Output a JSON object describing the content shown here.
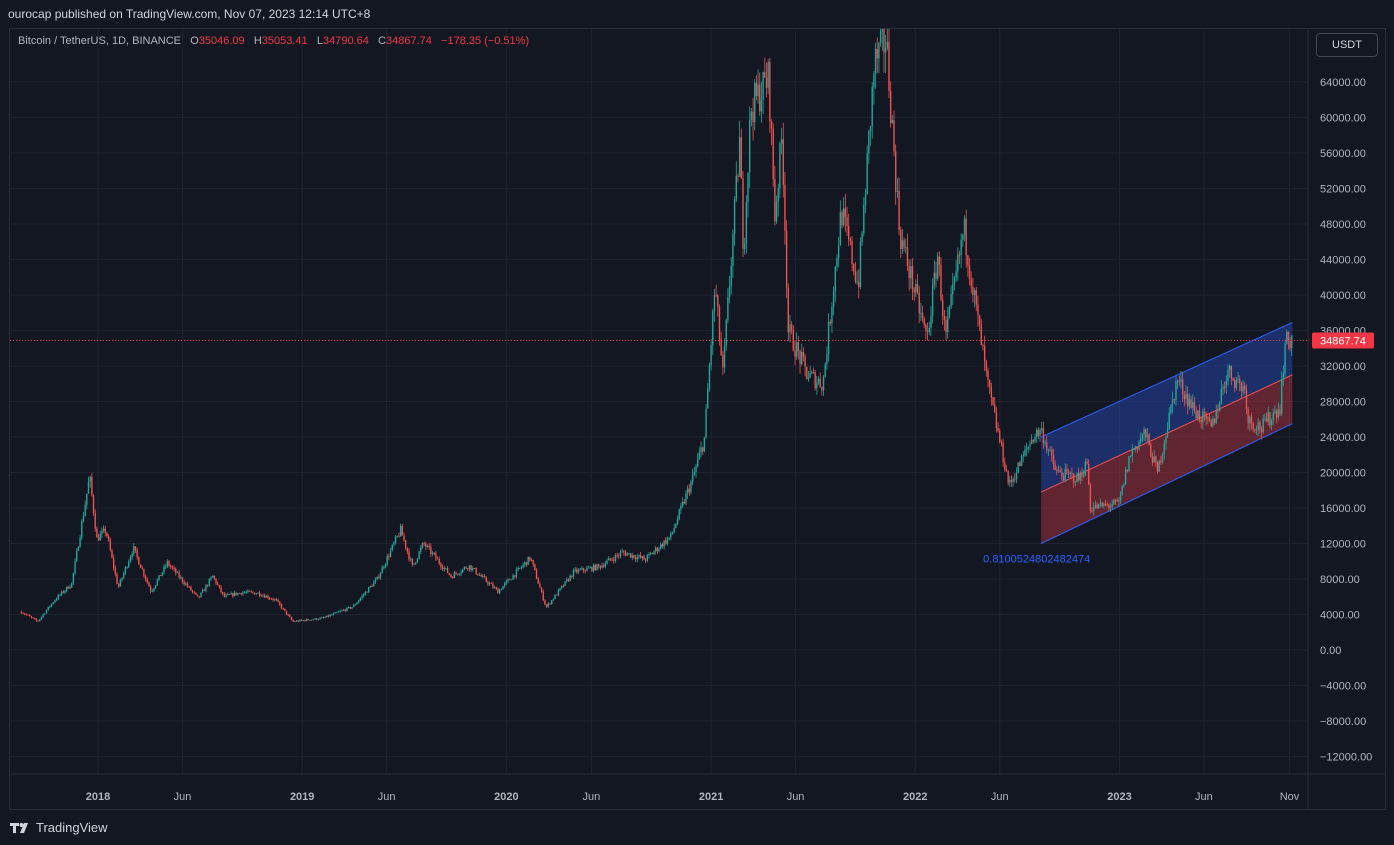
{
  "header": {
    "published": "ourocap published on TradingView.com, Nov 07, 2023 12:14 UTC+8"
  },
  "legend": {
    "symbol": "Bitcoin / TetherUS, 1D, BINANCE",
    "o_label": "O",
    "o_value": "35046.09",
    "h_label": "H",
    "h_value": "35053.41",
    "l_label": "L",
    "l_value": "34790.64",
    "c_label": "C",
    "c_value": "34867.74",
    "change": "−178.35 (−0.51%)"
  },
  "currency_button": "USDT",
  "footer": {
    "brand": "TradingView",
    "logo_icon": "tradingview-logo-icon"
  },
  "colors": {
    "background": "#131722",
    "grid": "#1f2331",
    "up": "#26a69a",
    "down": "#ef5350",
    "price_label_bg": "#f23645",
    "channel_upper_fill": "#2743a3",
    "channel_lower_fill": "#a3323f",
    "channel_line": "#2962ff",
    "fib_text": "#2962ff"
  },
  "chart_data": {
    "type": "candlestick",
    "symbol": "BTCUSDT",
    "interval": "1D",
    "ylim": [
      -14000,
      70000
    ],
    "y_ticks": [
      64000,
      60000,
      56000,
      52000,
      48000,
      44000,
      40000,
      36000,
      32000,
      28000,
      24000,
      20000,
      16000,
      12000,
      8000,
      4000,
      0,
      -4000,
      -8000,
      -12000
    ],
    "y_tick_labels": [
      "64000.00",
      "60000.00",
      "56000.00",
      "52000.00",
      "48000.00",
      "44000.00",
      "40000.00",
      "36000.00",
      "32000.00",
      "28000.00",
      "24000.00",
      "20000.00",
      "16000.00",
      "12000.00",
      "8000.00",
      "4000.00",
      "0.00",
      "−4000.00",
      "−8000.00",
      "−12000.00"
    ],
    "x_ticks": [
      {
        "date": "2018-01-01",
        "label": "2018"
      },
      {
        "date": "2018-06-01",
        "label": "Jun"
      },
      {
        "date": "2019-01-01",
        "label": "2019"
      },
      {
        "date": "2019-06-01",
        "label": "Jun"
      },
      {
        "date": "2020-01-01",
        "label": "2020"
      },
      {
        "date": "2020-06-01",
        "label": "Jun"
      },
      {
        "date": "2021-01-01",
        "label": "2021"
      },
      {
        "date": "2021-06-01",
        "label": "Jun"
      },
      {
        "date": "2022-01-01",
        "label": "2022"
      },
      {
        "date": "2022-06-01",
        "label": "Jun"
      },
      {
        "date": "2023-01-01",
        "label": "2023"
      },
      {
        "date": "2023-06-01",
        "label": "Jun"
      },
      {
        "date": "2023-11-01",
        "label": "Nov"
      }
    ],
    "x_range": [
      "2017-08-17",
      "2024-01-07"
    ],
    "price_path": [
      {
        "date": "2017-08-17",
        "close": 4300
      },
      {
        "date": "2017-09-15",
        "close": 3200
      },
      {
        "date": "2017-10-15",
        "close": 5600
      },
      {
        "date": "2017-11-15",
        "close": 7500
      },
      {
        "date": "2017-12-17",
        "close": 19500
      },
      {
        "date": "2017-12-30",
        "close": 12500
      },
      {
        "date": "2018-01-15",
        "close": 13500
      },
      {
        "date": "2018-02-06",
        "close": 7000
      },
      {
        "date": "2018-03-05",
        "close": 11500
      },
      {
        "date": "2018-04-06",
        "close": 6600
      },
      {
        "date": "2018-05-05",
        "close": 9800
      },
      {
        "date": "2018-06-29",
        "close": 5800
      },
      {
        "date": "2018-07-25",
        "close": 8300
      },
      {
        "date": "2018-08-14",
        "close": 6000
      },
      {
        "date": "2018-09-15",
        "close": 6500
      },
      {
        "date": "2018-10-15",
        "close": 6400
      },
      {
        "date": "2018-11-15",
        "close": 5600
      },
      {
        "date": "2018-12-15",
        "close": 3200
      },
      {
        "date": "2019-02-08",
        "close": 3600
      },
      {
        "date": "2019-04-02",
        "close": 4900
      },
      {
        "date": "2019-05-15",
        "close": 8000
      },
      {
        "date": "2019-06-26",
        "close": 13500
      },
      {
        "date": "2019-07-17",
        "close": 9400
      },
      {
        "date": "2019-08-06",
        "close": 12000
      },
      {
        "date": "2019-09-24",
        "close": 8300
      },
      {
        "date": "2019-10-26",
        "close": 9500
      },
      {
        "date": "2019-12-17",
        "close": 6600
      },
      {
        "date": "2020-02-13",
        "close": 10400
      },
      {
        "date": "2020-03-12",
        "close": 4800
      },
      {
        "date": "2020-05-01",
        "close": 8800
      },
      {
        "date": "2020-06-15",
        "close": 9400
      },
      {
        "date": "2020-07-27",
        "close": 11000
      },
      {
        "date": "2020-09-05",
        "close": 10200
      },
      {
        "date": "2020-10-21",
        "close": 12800
      },
      {
        "date": "2020-11-30",
        "close": 19500
      },
      {
        "date": "2020-12-20",
        "close": 23800
      },
      {
        "date": "2021-01-08",
        "close": 41000
      },
      {
        "date": "2021-01-22",
        "close": 31000
      },
      {
        "date": "2021-02-21",
        "close": 57000
      },
      {
        "date": "2021-02-28",
        "close": 45000
      },
      {
        "date": "2021-03-13",
        "close": 61000
      },
      {
        "date": "2021-04-14",
        "close": 64500
      },
      {
        "date": "2021-04-25",
        "close": 49000
      },
      {
        "date": "2021-05-08",
        "close": 58000
      },
      {
        "date": "2021-05-19",
        "close": 36000
      },
      {
        "date": "2021-06-22",
        "close": 31000
      },
      {
        "date": "2021-07-20",
        "close": 30000
      },
      {
        "date": "2021-08-22",
        "close": 49500
      },
      {
        "date": "2021-09-21",
        "close": 41000
      },
      {
        "date": "2021-10-20",
        "close": 66000
      },
      {
        "date": "2021-11-10",
        "close": 68800
      },
      {
        "date": "2021-12-04",
        "close": 47000
      },
      {
        "date": "2022-01-22",
        "close": 35000
      },
      {
        "date": "2022-02-10",
        "close": 44500
      },
      {
        "date": "2022-02-24",
        "close": 35000
      },
      {
        "date": "2022-03-29",
        "close": 47500
      },
      {
        "date": "2022-05-10",
        "close": 30000
      },
      {
        "date": "2022-06-18",
        "close": 18500
      },
      {
        "date": "2022-07-30",
        "close": 24000
      },
      {
        "date": "2022-08-14",
        "close": 24800
      },
      {
        "date": "2022-09-10",
        "close": 20000
      },
      {
        "date": "2022-10-20",
        "close": 19300
      },
      {
        "date": "2022-11-05",
        "close": 21200
      },
      {
        "date": "2022-11-09",
        "close": 16000
      },
      {
        "date": "2022-12-31",
        "close": 16500
      },
      {
        "date": "2023-01-20",
        "close": 22000
      },
      {
        "date": "2023-02-15",
        "close": 24500
      },
      {
        "date": "2023-03-10",
        "close": 20000
      },
      {
        "date": "2023-04-14",
        "close": 30500
      },
      {
        "date": "2023-05-15",
        "close": 27000
      },
      {
        "date": "2023-06-15",
        "close": 25000
      },
      {
        "date": "2023-07-13",
        "close": 31500
      },
      {
        "date": "2023-08-15",
        "close": 29200
      },
      {
        "date": "2023-08-18",
        "close": 26000
      },
      {
        "date": "2023-09-12",
        "close": 25000
      },
      {
        "date": "2023-10-15",
        "close": 27500
      },
      {
        "date": "2023-10-24",
        "close": 34500
      },
      {
        "date": "2023-11-06",
        "close": 35200
      }
    ],
    "last_price": 34867.74,
    "last_price_label": "34867.74",
    "regression_channel": {
      "start": {
        "date": "2022-08-14",
        "upper": 24000,
        "mid": 17800,
        "lower": 12000
      },
      "end": {
        "date": "2023-11-06",
        "upper": 36900,
        "mid": 31000,
        "lower": 25500
      },
      "label": "0.8100524802482474"
    }
  }
}
